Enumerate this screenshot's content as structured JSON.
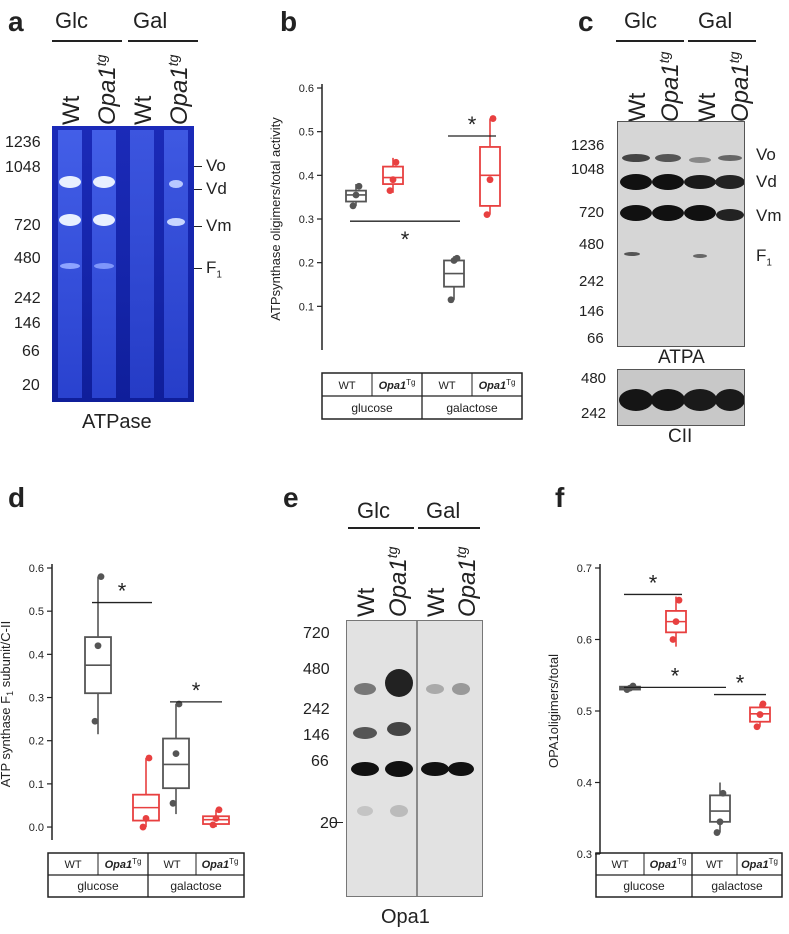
{
  "panels": {
    "a": {
      "letter": "a",
      "groups": [
        "Glc",
        "Gal"
      ],
      "lanes": [
        "Wt",
        "Opa1",
        "Wt",
        "Opa1"
      ],
      "lane_sup": "tg",
      "markers": [
        "1236",
        "1048",
        "720",
        "480",
        "242",
        "146",
        "66",
        "20"
      ],
      "bands": [
        "Vo",
        "Vd",
        "Vm",
        "F"
      ],
      "band_sub": "1",
      "caption": "ATPase",
      "colors": {
        "gel_dark": "#0b1a9e",
        "gel_light": "#3a4fd8",
        "band": "#e8f0ff"
      }
    },
    "c": {
      "letter": "c",
      "groups": [
        "Glc",
        "Gal"
      ],
      "lanes": [
        "Wt",
        "Opa1",
        "Wt",
        "Opa1"
      ],
      "lane_sup": "tg",
      "markers": [
        "1236",
        "1048",
        "720",
        "480",
        "242",
        "146",
        "66"
      ],
      "bands": [
        "Vo",
        "Vd",
        "Vm",
        "F"
      ],
      "band_sub": "1",
      "caption": "ATPA",
      "cii_markers": [
        "480",
        "242"
      ],
      "cii_caption": "CII"
    },
    "e": {
      "letter": "e",
      "groups": [
        "Glc",
        "Gal"
      ],
      "lanes": [
        "Wt",
        "Opa1",
        "Wt",
        "Opa1"
      ],
      "lane_sup": "tg",
      "markers": [
        "720",
        "480",
        "242",
        "146",
        "66",
        "20"
      ],
      "caption": "Opa1"
    }
  },
  "chart_data": [
    {
      "panel": "b",
      "letter": "b",
      "type": "box",
      "ylabel": "ATPsynthase oligimers/total activity",
      "ylim": [
        0.0,
        0.6
      ],
      "yticks": [
        "0.1",
        "0.2",
        "0.3",
        "0.4",
        "0.5",
        "0.6"
      ],
      "categories": [
        {
          "label": "WT",
          "italic": false,
          "sup": ""
        },
        {
          "label": "Opa1",
          "italic": true,
          "sup": "Tg"
        },
        {
          "label": "WT",
          "italic": false,
          "sup": ""
        },
        {
          "label": "Opa1",
          "italic": true,
          "sup": "Tg"
        }
      ],
      "conditions": [
        "glucose",
        "galactose"
      ],
      "boxes": [
        {
          "color": "#555555",
          "min": 0.33,
          "q1": 0.34,
          "median": 0.355,
          "q3": 0.365,
          "max": 0.38,
          "points": [
            0.33,
            0.355,
            0.375
          ]
        },
        {
          "color": "#e84040",
          "min": 0.36,
          "q1": 0.38,
          "median": 0.395,
          "q3": 0.42,
          "max": 0.44,
          "points": [
            0.365,
            0.39,
            0.43
          ]
        },
        {
          "color": "#555555",
          "min": 0.115,
          "q1": 0.145,
          "median": 0.175,
          "q3": 0.205,
          "max": 0.215,
          "points": [
            0.115,
            0.205,
            0.21
          ]
        },
        {
          "color": "#e84040",
          "min": 0.31,
          "q1": 0.33,
          "median": 0.4,
          "q3": 0.465,
          "max": 0.53,
          "points": [
            0.31,
            0.39,
            0.53
          ]
        }
      ],
      "significance": [
        {
          "from": 2,
          "to": 3,
          "y": 0.49,
          "star_above": true,
          "label": "*"
        },
        {
          "from": 0,
          "to": 2,
          "y": 0.295,
          "star_above": false,
          "label": "*"
        }
      ]
    },
    {
      "panel": "d",
      "letter": "d",
      "type": "box",
      "ylabel": "ATP synthase F",
      "ylabel_sub": "1",
      "ylabel_rest": " subunit/C-II",
      "ylim": [
        -0.03,
        0.6
      ],
      "yticks": [
        "0.0",
        "0.1",
        "0.2",
        "0.3",
        "0.4",
        "0.5",
        "0.6"
      ],
      "categories": [
        {
          "label": "WT",
          "italic": false,
          "sup": ""
        },
        {
          "label": "Opa1",
          "italic": true,
          "sup": "Tg"
        },
        {
          "label": "WT",
          "italic": false,
          "sup": ""
        },
        {
          "label": "Opa1",
          "italic": true,
          "sup": "Tg"
        }
      ],
      "conditions": [
        "glucose",
        "galactose"
      ],
      "boxes": [
        {
          "color": "#555555",
          "min": 0.215,
          "q1": 0.31,
          "median": 0.375,
          "q3": 0.44,
          "max": 0.58,
          "points": [
            0.245,
            0.42,
            0.58
          ]
        },
        {
          "color": "#e84040",
          "min": 0.0,
          "q1": 0.015,
          "median": 0.045,
          "q3": 0.075,
          "max": 0.16,
          "points": [
            0.0,
            0.02,
            0.16
          ]
        },
        {
          "color": "#555555",
          "min": 0.03,
          "q1": 0.09,
          "median": 0.145,
          "q3": 0.205,
          "max": 0.285,
          "points": [
            0.055,
            0.17,
            0.285
          ]
        },
        {
          "color": "#e84040",
          "min": 0.0,
          "q1": 0.007,
          "median": 0.017,
          "q3": 0.025,
          "max": 0.04,
          "points": [
            0.005,
            0.02,
            0.04
          ]
        }
      ],
      "significance": [
        {
          "from": 0,
          "to": 1,
          "y": 0.52,
          "star_above": true,
          "label": "*"
        },
        {
          "from": 2,
          "to": 3,
          "y": 0.29,
          "star_above": true,
          "label": "*"
        }
      ]
    },
    {
      "panel": "f",
      "letter": "f",
      "type": "box",
      "ylabel": "OPA1oligimers/total",
      "ylim": [
        0.3,
        0.7
      ],
      "yticks": [
        "0.3",
        "0.4",
        "0.5",
        "0.6",
        "0.7"
      ],
      "categories": [
        {
          "label": "WT",
          "italic": false,
          "sup": ""
        },
        {
          "label": "Opa1",
          "italic": true,
          "sup": "Tg"
        },
        {
          "label": "WT",
          "italic": false,
          "sup": ""
        },
        {
          "label": "Opa1",
          "italic": true,
          "sup": "Tg"
        }
      ],
      "conditions": [
        "glucose",
        "galactose"
      ],
      "boxes": [
        {
          "color": "#555555",
          "min": 0.528,
          "q1": 0.53,
          "median": 0.532,
          "q3": 0.534,
          "max": 0.536,
          "points": [
            0.53,
            0.532,
            0.535
          ]
        },
        {
          "color": "#e84040",
          "min": 0.59,
          "q1": 0.61,
          "median": 0.625,
          "q3": 0.64,
          "max": 0.66,
          "points": [
            0.6,
            0.625,
            0.655
          ]
        },
        {
          "color": "#555555",
          "min": 0.33,
          "q1": 0.345,
          "median": 0.36,
          "q3": 0.382,
          "max": 0.4,
          "points": [
            0.33,
            0.345,
            0.385
          ]
        },
        {
          "color": "#e84040",
          "min": 0.478,
          "q1": 0.485,
          "median": 0.496,
          "q3": 0.505,
          "max": 0.51,
          "points": [
            0.478,
            0.495,
            0.51
          ]
        }
      ],
      "significance": [
        {
          "from": 0,
          "to": 1,
          "y": 0.663,
          "star_above": true,
          "label": "*"
        },
        {
          "from": 0,
          "to": 2,
          "y": 0.533,
          "star_above": true,
          "label": "*"
        },
        {
          "from": 2,
          "to": 3,
          "y": 0.523,
          "star_above": true,
          "label": "*"
        }
      ]
    }
  ]
}
